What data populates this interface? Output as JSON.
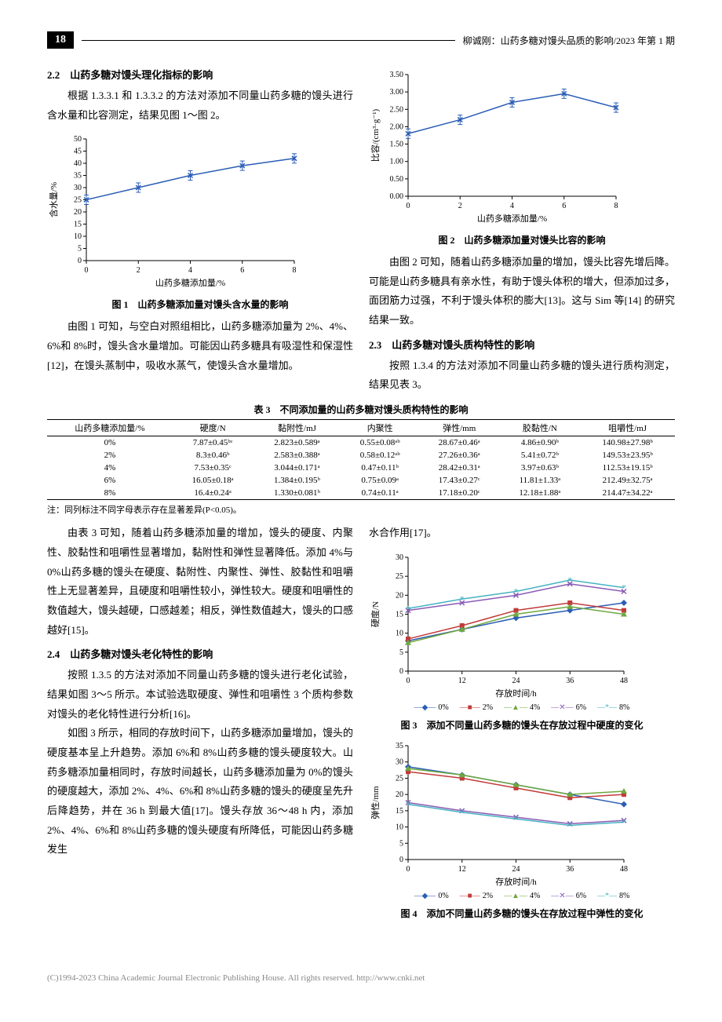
{
  "header": {
    "page_number": "18",
    "right_text": "柳诚刚：山药多糖对馒头品质的影响/2023 年第 1 期"
  },
  "sec22": {
    "heading": "2.2　山药多糖对馒头理化指标的影响",
    "p1": "根据 1.3.3.1 和 1.3.3.2 的方法对添加不同量山药多糖的馒头进行含水量和比容测定，结果见图 1～图 2。"
  },
  "fig1": {
    "caption": "图 1　山药多糖添加量对馒头含水量的影响",
    "xlabel": "山药多糖添加量/%",
    "ylabel": "含水量/%",
    "xlim": [
      0,
      8
    ],
    "ylim": [
      0,
      50
    ],
    "ytick_step": 5,
    "xticks": [
      0,
      2,
      4,
      6,
      8
    ],
    "points": [
      [
        0,
        25
      ],
      [
        2,
        30
      ],
      [
        4,
        35
      ],
      [
        6,
        39
      ],
      [
        8,
        42
      ]
    ],
    "color": "#2b5db5",
    "marker": "cross"
  },
  "fig1_para": "由图 1 可知，与空白对照组相比，山药多糖添加量为 2%、4%、6%和 8%时，馒头含水量增加。可能因山药多糖具有吸湿性和保湿性[12]，在馒头蒸制中，吸收水蒸气，使馒头含水量增加。",
  "fig2": {
    "caption": "图 2　山药多糖添加量对馒头比容的影响",
    "xlabel": "山药多糖添加量/%",
    "ylabel": "比容/(cm³·g⁻¹)",
    "xlim": [
      0,
      8
    ],
    "ylim": [
      0,
      3.5
    ],
    "ytick_step": 0.5,
    "xticks": [
      0,
      2,
      4,
      6,
      8
    ],
    "points": [
      [
        0,
        1.8
      ],
      [
        2,
        2.2
      ],
      [
        4,
        2.7
      ],
      [
        6,
        2.95
      ],
      [
        8,
        2.55
      ]
    ],
    "color": "#2b5db5"
  },
  "fig2_para": "由图 2 可知，随着山药多糖添加量的增加，馒头比容先增后降。可能是山药多糖具有亲水性，有助于馒头体积的增大，但添加过多，面团筋力过强，不利于馒头体积的膨大[13]。这与 Sim 等[14] 的研究结果一致。",
  "sec23": {
    "heading": "2.3　山药多糖对馒头质构特性的影响",
    "p1": "按照 1.3.4 的方法对添加不同量山药多糖的馒头进行质构测定，结果见表 3。"
  },
  "table3": {
    "title": "表 3　不同添加量的山药多糖对馒头质构特性的影响",
    "columns": [
      "山药多糖添加量/%",
      "硬度/N",
      "黏附性/mJ",
      "内聚性",
      "弹性/mm",
      "胶黏性/N",
      "咀嚼性/mJ"
    ],
    "rows": [
      [
        "0%",
        "7.87±0.45ᵇᶜ",
        "2.823±0.589ᵃ",
        "0.55±0.08ᵃᵇ",
        "28.67±0.46ᵃ",
        "4.86±0.90ᵇ",
        "140.98±27.98ᵇ"
      ],
      [
        "2%",
        "8.3±0.46ᵇ",
        "2.583±0.388ᵃ",
        "0.58±0.12ᵃᵇ",
        "27.26±0.36ᵃ",
        "5.41±0.72ᵇ",
        "149.53±23.95ᵇ"
      ],
      [
        "4%",
        "7.53±0.35ᶜ",
        "3.044±0.171ᵃ",
        "0.47±0.11ᵇ",
        "28.42±0.31ᵃ",
        "3.97±0.63ᵇ",
        "112.53±19.15ᵇ"
      ],
      [
        "6%",
        "16.05±0.18ᵃ",
        "1.384±0.195ᵇ",
        "0.75±0.09ᵃ",
        "17.43±0.27ᶜ",
        "11.81±1.33ᵃ",
        "212.49±32.75ᵃ"
      ],
      [
        "8%",
        "16.4±0.24ᵃ",
        "1.330±0.081ᵇ",
        "0.74±0.11ᵃ",
        "17.18±0.20ᶜ",
        "12.18±1.88ᵃ",
        "214.47±34.22ᵃ"
      ]
    ],
    "note": "注：同列标注不同字母表示存在显著差异(P<0.05)。"
  },
  "tbl3_para": "由表 3 可知，随着山药多糖添加量的增加，馒头的硬度、内聚性、胶黏性和咀嚼性显著增加，黏附性和弹性显著降低。添加 4%与 0%山药多糖的馒头在硬度、黏附性、内聚性、弹性、胶黏性和咀嚼性上无显著差异，且硬度和咀嚼性较小，弹性较大。硬度和咀嚼性的数值越大，馒头越硬，口感越差；相反，弹性数值越大，馒头的口感越好[15]。",
  "sec24": {
    "heading": "2.4　山药多糖对馒头老化特性的影响",
    "p1": "按照 1.3.5 的方法对添加不同量山药多糖的馒头进行老化试验，结果如图 3～5 所示。本试验选取硬度、弹性和咀嚼性 3 个质构参数对馒头的老化特性进行分析[16]。",
    "p2": "如图 3 所示，相同的存放时间下，山药多糖添加量增加，馒头的硬度基本呈上升趋势。添加 6%和 8%山药多糖的馒头硬度较大。山药多糖添加量相同时，存放时间越长，山药多糖添加量为 0%的馒头的硬度越大，添加 2%、4%、6%和 8%山药多糖的馒头的硬度呈先升后降趋势，并在 36 h 到最大值[17]。馒头存放 36～48 h 内，添加 2%、4%、6%和 8%山药多糖的馒头硬度有所降低，可能因山药多糖发生"
  },
  "right_frag": "水合作用[17]。",
  "fig3": {
    "caption": "图 3　添加不同量山药多糖的馒头在存放过程中硬度的变化",
    "xlabel": "存放时间/h",
    "ylabel": "硬度/N",
    "xlim": [
      0,
      48
    ],
    "ylim": [
      0,
      30
    ],
    "ytick_step": 5,
    "xticks": [
      0,
      12,
      24,
      36,
      48
    ],
    "series": [
      {
        "name": "0%",
        "color": "#2b5db5",
        "marker": "diamond",
        "points": [
          [
            0,
            8
          ],
          [
            12,
            11
          ],
          [
            24,
            14
          ],
          [
            36,
            16
          ],
          [
            48,
            18
          ]
        ]
      },
      {
        "name": "2%",
        "color": "#c23a3a",
        "marker": "square",
        "points": [
          [
            0,
            8.5
          ],
          [
            12,
            12
          ],
          [
            24,
            16
          ],
          [
            36,
            18
          ],
          [
            48,
            16
          ]
        ]
      },
      {
        "name": "4%",
        "color": "#6fa83e",
        "marker": "triangle",
        "points": [
          [
            0,
            7.5
          ],
          [
            12,
            11
          ],
          [
            24,
            15
          ],
          [
            36,
            17
          ],
          [
            48,
            15
          ]
        ]
      },
      {
        "name": "6%",
        "color": "#8a5bb5",
        "marker": "cross",
        "points": [
          [
            0,
            16
          ],
          [
            12,
            18
          ],
          [
            24,
            20
          ],
          [
            36,
            23
          ],
          [
            48,
            21
          ]
        ]
      },
      {
        "name": "8%",
        "color": "#46b3c2",
        "marker": "star",
        "points": [
          [
            0,
            16.5
          ],
          [
            12,
            19
          ],
          [
            24,
            21
          ],
          [
            36,
            24
          ],
          [
            48,
            22
          ]
        ]
      }
    ]
  },
  "fig4": {
    "caption": "图 4　添加不同量山药多糖的馒头在存放过程中弹性的变化",
    "xlabel": "存放时间/h",
    "ylabel": "弹性/mm",
    "xlim": [
      0,
      48
    ],
    "ylim": [
      0,
      35
    ],
    "ytick_step": 5,
    "xticks": [
      0,
      12,
      24,
      36,
      48
    ],
    "series": [
      {
        "name": "0%",
        "color": "#2b5db5",
        "marker": "diamond",
        "points": [
          [
            0,
            28.5
          ],
          [
            12,
            26
          ],
          [
            24,
            23
          ],
          [
            36,
            20
          ],
          [
            48,
            17
          ]
        ]
      },
      {
        "name": "2%",
        "color": "#c23a3a",
        "marker": "square",
        "points": [
          [
            0,
            27
          ],
          [
            12,
            25
          ],
          [
            24,
            22
          ],
          [
            36,
            19
          ],
          [
            48,
            20
          ]
        ]
      },
      {
        "name": "4%",
        "color": "#6fa83e",
        "marker": "triangle",
        "points": [
          [
            0,
            28
          ],
          [
            12,
            26
          ],
          [
            24,
            23
          ],
          [
            36,
            20
          ],
          [
            48,
            21
          ]
        ]
      },
      {
        "name": "6%",
        "color": "#8a5bb5",
        "marker": "cross",
        "points": [
          [
            0,
            17.5
          ],
          [
            12,
            15
          ],
          [
            24,
            13
          ],
          [
            36,
            11
          ],
          [
            48,
            12
          ]
        ]
      },
      {
        "name": "8%",
        "color": "#46b3c2",
        "marker": "star",
        "points": [
          [
            0,
            17
          ],
          [
            12,
            14.5
          ],
          [
            24,
            12.5
          ],
          [
            36,
            10.5
          ],
          [
            48,
            11.5
          ]
        ]
      }
    ]
  },
  "legend_labels": [
    "0%",
    "2%",
    "4%",
    "6%",
    "8%"
  ],
  "legend_markers": [
    "◆",
    "■",
    "▲",
    "✕",
    "*"
  ],
  "legend_colors": [
    "#2b5db5",
    "#c23a3a",
    "#6fa83e",
    "#8a5bb5",
    "#46b3c2"
  ],
  "footer": "(C)1994-2023 China Academic Journal Electronic Publishing House. All rights reserved.   http://www.cnki.net"
}
